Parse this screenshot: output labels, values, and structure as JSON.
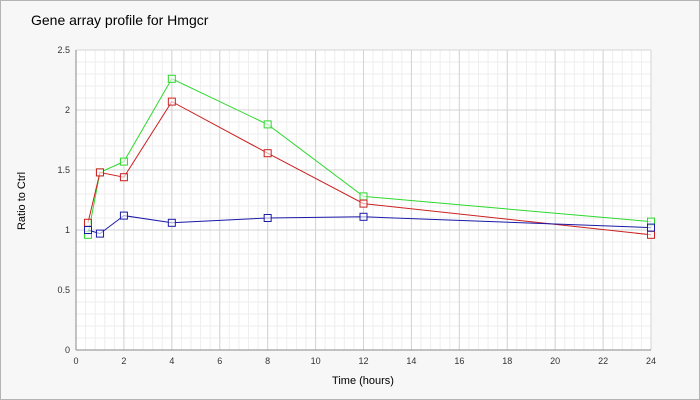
{
  "chart_data": {
    "type": "line",
    "title": "Gene array profile for Hmgcr",
    "xlabel": "Time (hours)",
    "ylabel": "Ratio to Ctrl",
    "xlim": [
      0,
      24
    ],
    "ylim": [
      0,
      2.5
    ],
    "xticks": [
      0,
      2,
      4,
      6,
      8,
      10,
      12,
      14,
      16,
      18,
      20,
      22,
      24
    ],
    "yticks": [
      0,
      0.5,
      1,
      1.5,
      2,
      2.5
    ],
    "xtick_labels": [
      "0",
      "2",
      "4",
      "6",
      "8",
      "10",
      "12",
      "14",
      "16",
      "18",
      "20",
      "22",
      "24"
    ],
    "ytick_labels": [
      "0",
      "0.5",
      "1",
      "1.5",
      "2",
      "2.5"
    ],
    "grid": true,
    "legend": "none",
    "x": [
      0.5,
      1,
      2,
      4,
      8,
      12,
      24
    ],
    "series": [
      {
        "color": "#2dd82d",
        "values": [
          0.96,
          1.48,
          1.57,
          2.26,
          1.88,
          1.28,
          1.07
        ]
      },
      {
        "color": "#cc2020",
        "values": [
          1.06,
          1.48,
          1.44,
          2.07,
          1.64,
          1.22,
          0.96
        ]
      },
      {
        "color": "#1a1aa8",
        "values": [
          1.0,
          0.97,
          1.12,
          1.06,
          1.1,
          1.11,
          1.02
        ]
      }
    ]
  }
}
